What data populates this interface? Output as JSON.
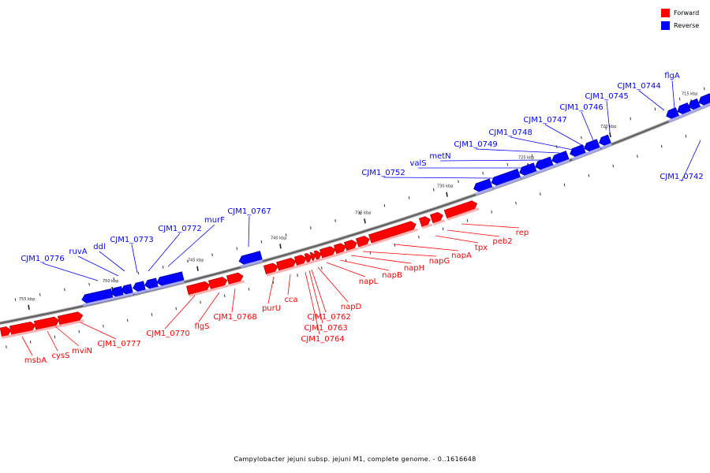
{
  "legend": {
    "forward": {
      "label": "Forward",
      "color": "#ff0000"
    },
    "reverse": {
      "label": "Reverse",
      "color": "#0000ff"
    }
  },
  "caption": "Campylobacter jejuni subsp. jejuni M1, complete genome. - 0..1616648",
  "ticks": [
    "715 kbp",
    "720 kbp",
    "725 kbp",
    "730 kbp",
    "735 kbp",
    "740 kbp",
    "745 kbp",
    "750 kbp",
    "755 kbp"
  ],
  "reverse_genes": [
    "flgA",
    "CJM1_0742",
    "CJM1_0744",
    "CJM1_0745",
    "CJM1_0746",
    "CJM1_0747",
    "CJM1_0748",
    "CJM1_0749",
    "metN",
    "valS",
    "CJM1_0752",
    "CJM1_0767",
    "murF",
    "CJM1_0772",
    "CJM1_0773",
    "ddl",
    "ruvA",
    "CJM1_0776"
  ],
  "forward_genes": [
    "rep",
    "peb2",
    "tpx",
    "napA",
    "napG",
    "napH",
    "napB",
    "napL",
    "napD",
    "CJM1_0762",
    "CJM1_0763",
    "CJM1_0764",
    "cca",
    "purU",
    "CJM1_0768",
    "flgS",
    "CJM1_0770",
    "CJM1_0777",
    "mviN",
    "cysS",
    "msbA"
  ]
}
